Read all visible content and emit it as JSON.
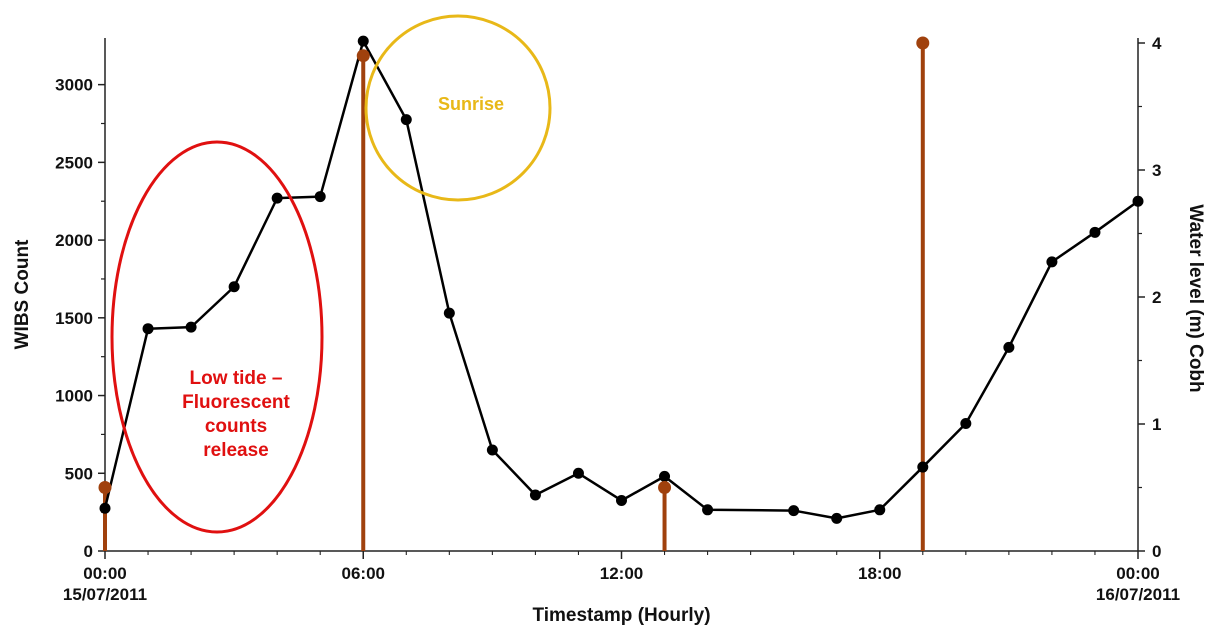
{
  "chart_data": {
    "type": "line",
    "xlabel": "Timestamp (Hourly)",
    "ylabel": "WIBS Count",
    "y2label": "Water level (m) Cobh",
    "xlim": [
      0,
      24
    ],
    "ylim": [
      0,
      3300
    ],
    "y2lim": [
      0,
      4
    ],
    "x_ticks": [
      {
        "x": 0,
        "line1": "00:00",
        "line2": "15/07/2011"
      },
      {
        "x": 6,
        "line1": "06:00",
        "line2": ""
      },
      {
        "x": 12,
        "line1": "12:00",
        "line2": ""
      },
      {
        "x": 18,
        "line1": "18:00",
        "line2": ""
      },
      {
        "x": 24,
        "line1": "00:00",
        "line2": "16/07/2011"
      }
    ],
    "y_ticks": [
      "0",
      "500",
      "1000",
      "1500",
      "2000",
      "2500",
      "3000"
    ],
    "y2_ticks": [
      "0",
      "1",
      "2",
      "3",
      "4"
    ],
    "series": [
      {
        "axis": "left",
        "style": "line-markers",
        "color": "#000000",
        "x": [
          0,
          1,
          2,
          3,
          4,
          5,
          6,
          7,
          8,
          9,
          10,
          11,
          12,
          13,
          14,
          16,
          17,
          18,
          19,
          20,
          21,
          22,
          23,
          24
        ],
        "values": [
          275,
          1430,
          1440,
          1700,
          2270,
          2280,
          3280,
          2775,
          1530,
          650,
          360,
          500,
          325,
          480,
          265,
          260,
          210,
          265,
          540,
          820,
          1310,
          1860,
          2050,
          2250
        ]
      },
      {
        "axis": "right",
        "style": "stem",
        "color": "#a0410d",
        "x": [
          0,
          6,
          13,
          19
        ],
        "values": [
          0.5,
          3.9,
          0.5,
          4.0
        ]
      }
    ],
    "annotations": [
      {
        "kind": "ellipse",
        "color": "#e01010",
        "lines": [
          "Low tide –",
          "Fluorescent",
          "counts",
          "release"
        ]
      },
      {
        "kind": "circle",
        "color": "#e8b818",
        "lines": [
          "Sunrise"
        ]
      }
    ],
    "grid": false,
    "legend": "none"
  }
}
